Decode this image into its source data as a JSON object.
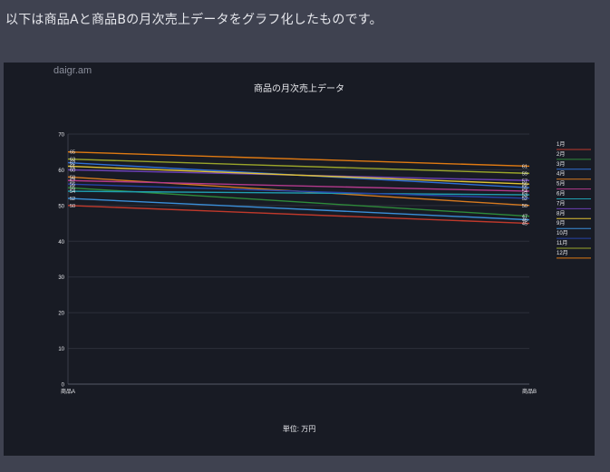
{
  "page": {
    "intro_text": "以下は商品Aと商品Bの月次売上データをグラフ化したものです。",
    "brand": "daigr.am"
  },
  "colors": {
    "background": "#3f4250",
    "card": "#181b24",
    "grid": "#2c303b",
    "axis_text": "#e9eaee"
  },
  "chart_data": {
    "type": "line",
    "title": "商品の月次売上データ",
    "xlabel": "単位: 万円",
    "ylabel": "",
    "categories": [
      "商品A",
      "商品B"
    ],
    "ylim": [
      0,
      70
    ],
    "yticks": [
      0,
      10,
      20,
      30,
      40,
      50,
      60,
      70
    ],
    "grid": true,
    "legend_position": "right",
    "series": [
      {
        "name": "1月",
        "color": "#c0392b",
        "values": [
          50,
          45
        ]
      },
      {
        "name": "2月",
        "color": "#2e8b3a",
        "values": [
          55,
          47
        ]
      },
      {
        "name": "3月",
        "color": "#2f6fd6",
        "values": [
          62,
          55
        ]
      },
      {
        "name": "4月",
        "color": "#d77a1f",
        "values": [
          58,
          50
        ]
      },
      {
        "name": "5月",
        "color": "#b43a8c",
        "values": [
          57,
          54
        ]
      },
      {
        "name": "6月",
        "color": "#1f9fb0",
        "values": [
          54,
          53
        ]
      },
      {
        "name": "7月",
        "color": "#6a3fb3",
        "values": [
          60,
          57
        ]
      },
      {
        "name": "8月",
        "color": "#e0c234",
        "values": [
          61,
          56
        ]
      },
      {
        "name": "9月",
        "color": "#3a8fd9",
        "values": [
          52,
          46
        ]
      },
      {
        "name": "10月",
        "color": "#2643a8",
        "values": [
          56,
          52
        ]
      },
      {
        "name": "11月",
        "color": "#9aa52a",
        "values": [
          63,
          59
        ]
      },
      {
        "name": "12月",
        "color": "#e07a12",
        "values": [
          65,
          61
        ]
      }
    ]
  }
}
